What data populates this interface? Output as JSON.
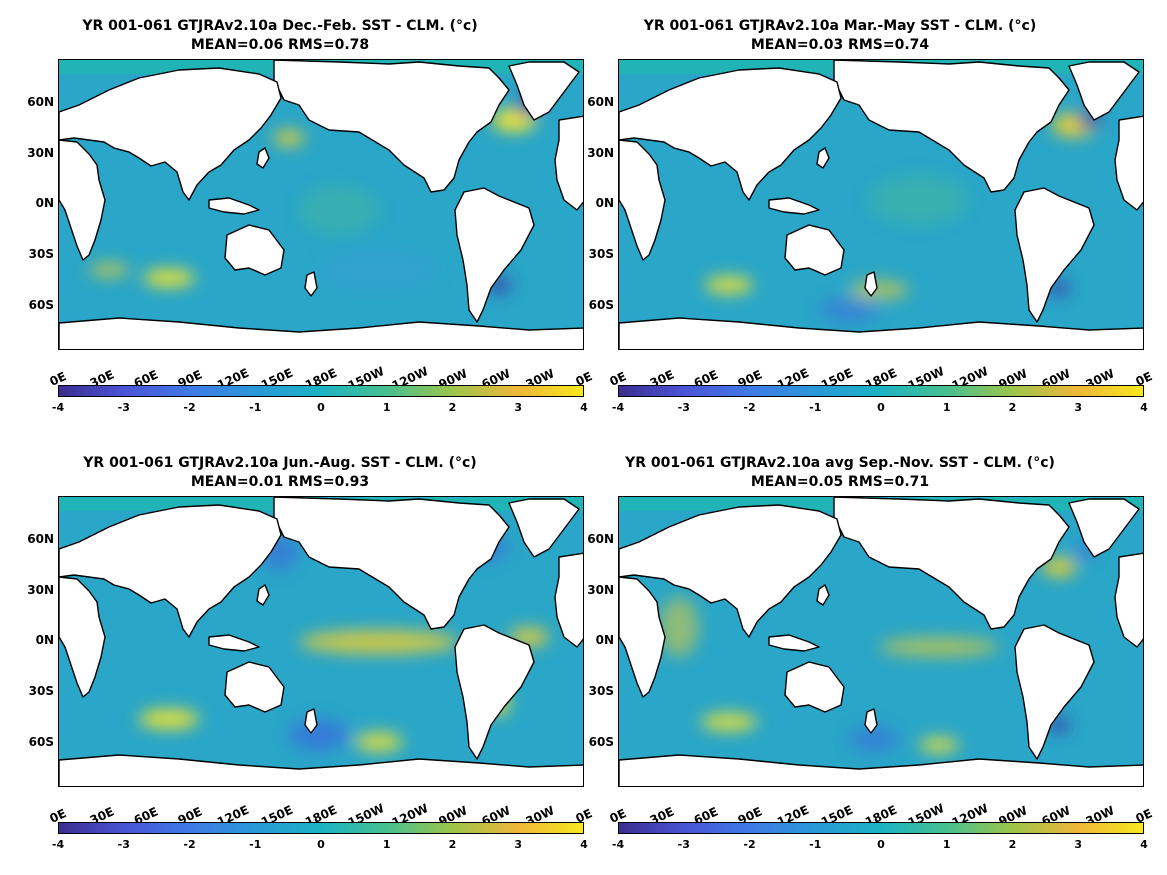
{
  "panels": [
    {
      "title_line1": "YR 001-061 GTJRAv2.10a  Dec.-Feb. SST - CLM. (°c)",
      "title_line2": "MEAN=0.06   RMS=0.78"
    },
    {
      "title_line1": "YR 001-061 GTJRAv2.10a Mar.-May SST - CLM. (°c)",
      "title_line2": "MEAN=0.03   RMS=0.74"
    },
    {
      "title_line1": "YR 001-061 GTJRAv2.10a Jun.-Aug. SST - CLM. (°c)",
      "title_line2": "MEAN=0.01   RMS=0.93"
    },
    {
      "title_line1": "YR 001-061 GTJRAv2.10a avg Sep.-Nov. SST - CLM. (°c)",
      "title_line2": "MEAN=0.05   RMS=0.71"
    }
  ],
  "lat_labels": [
    "60N",
    "30N",
    "0N",
    "30S",
    "60S"
  ],
  "lon_labels": [
    "0E",
    "30E",
    "60E",
    "90E",
    "120E",
    "150E",
    "180E",
    "150W",
    "120W",
    "90W",
    "60W",
    "30W",
    "0E"
  ],
  "colorbar": {
    "ticks": [
      "-4",
      "-3",
      "-2",
      "-1",
      "0",
      "1",
      "2",
      "3",
      "4"
    ],
    "colors": [
      "#3b2e8f",
      "#4a54d6",
      "#3f7ae6",
      "#2a98d8",
      "#1bb3c4",
      "#47c08f",
      "#9bc54b",
      "#eeb73a",
      "#f6e81e"
    ]
  },
  "map_colors": {
    "ocean": "#2aa6c8",
    "land": "#ffffff",
    "coast": "#000000",
    "warm": "#f2d02a",
    "hot": "#f7e52a",
    "cool": "#3a6fdc",
    "cold": "#3a3aa8"
  }
}
